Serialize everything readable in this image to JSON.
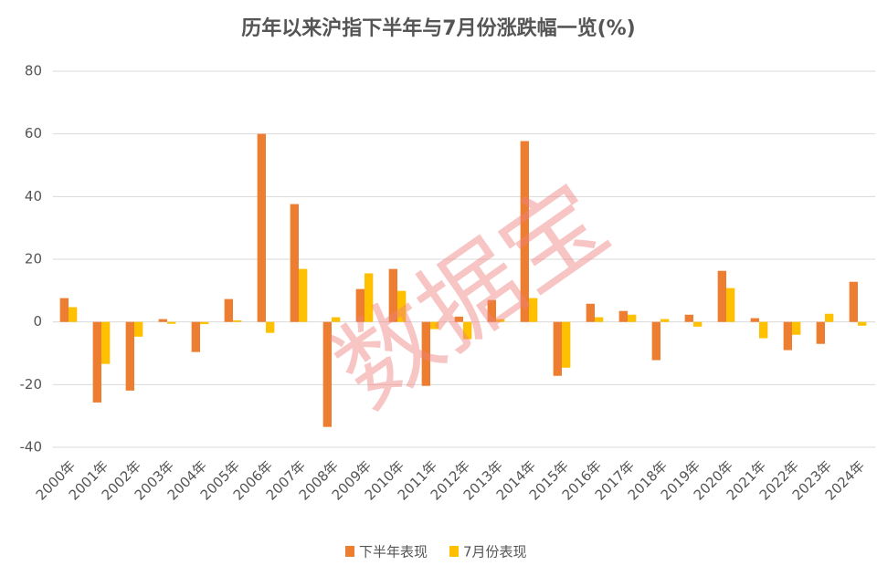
{
  "chart_data": {
    "type": "bar",
    "title": "历年以来沪指下半年与7月份涨跌幅一览(%)",
    "watermark": "数据宝",
    "categories": [
      "2000年",
      "2001年",
      "2002年",
      "2003年",
      "2004年",
      "2005年",
      "2006年",
      "2007年",
      "2008年",
      "2009年",
      "2010年",
      "2011年",
      "2012年",
      "2013年",
      "2014年",
      "2015年",
      "2016年",
      "2017年",
      "2018年",
      "2019年",
      "2020年",
      "2021年",
      "2022年",
      "2023年",
      "2024年"
    ],
    "series": [
      {
        "name": "下半年表现",
        "color": "#ed7d31",
        "values": [
          7.6,
          -25.7,
          -21.9,
          0.9,
          -9.6,
          7.3,
          60,
          37.6,
          -33.5,
          10.5,
          16.9,
          -20.4,
          1.7,
          7,
          57.7,
          -17.2,
          5.8,
          3.5,
          -12.2,
          2.3,
          16.3,
          1.2,
          -9,
          -7,
          12.8
        ]
      },
      {
        "name": "7月份表现",
        "color": "#ffc000",
        "values": [
          4.7,
          -13.4,
          -4.7,
          -0.6,
          -0.7,
          0.5,
          -3.5,
          16.9,
          1.5,
          15.5,
          9.9,
          -2.3,
          -5.5,
          0.9,
          7.6,
          -14.6,
          1.5,
          2.3,
          0.9,
          -1.5,
          10.8,
          -5.2,
          -4.1,
          2.6,
          -1.2
        ]
      }
    ],
    "ylim": [
      -40,
      80
    ],
    "yticks": [
      -40,
      -20,
      0,
      20,
      40,
      60,
      80
    ],
    "grid": true,
    "legend": "bottom"
  }
}
